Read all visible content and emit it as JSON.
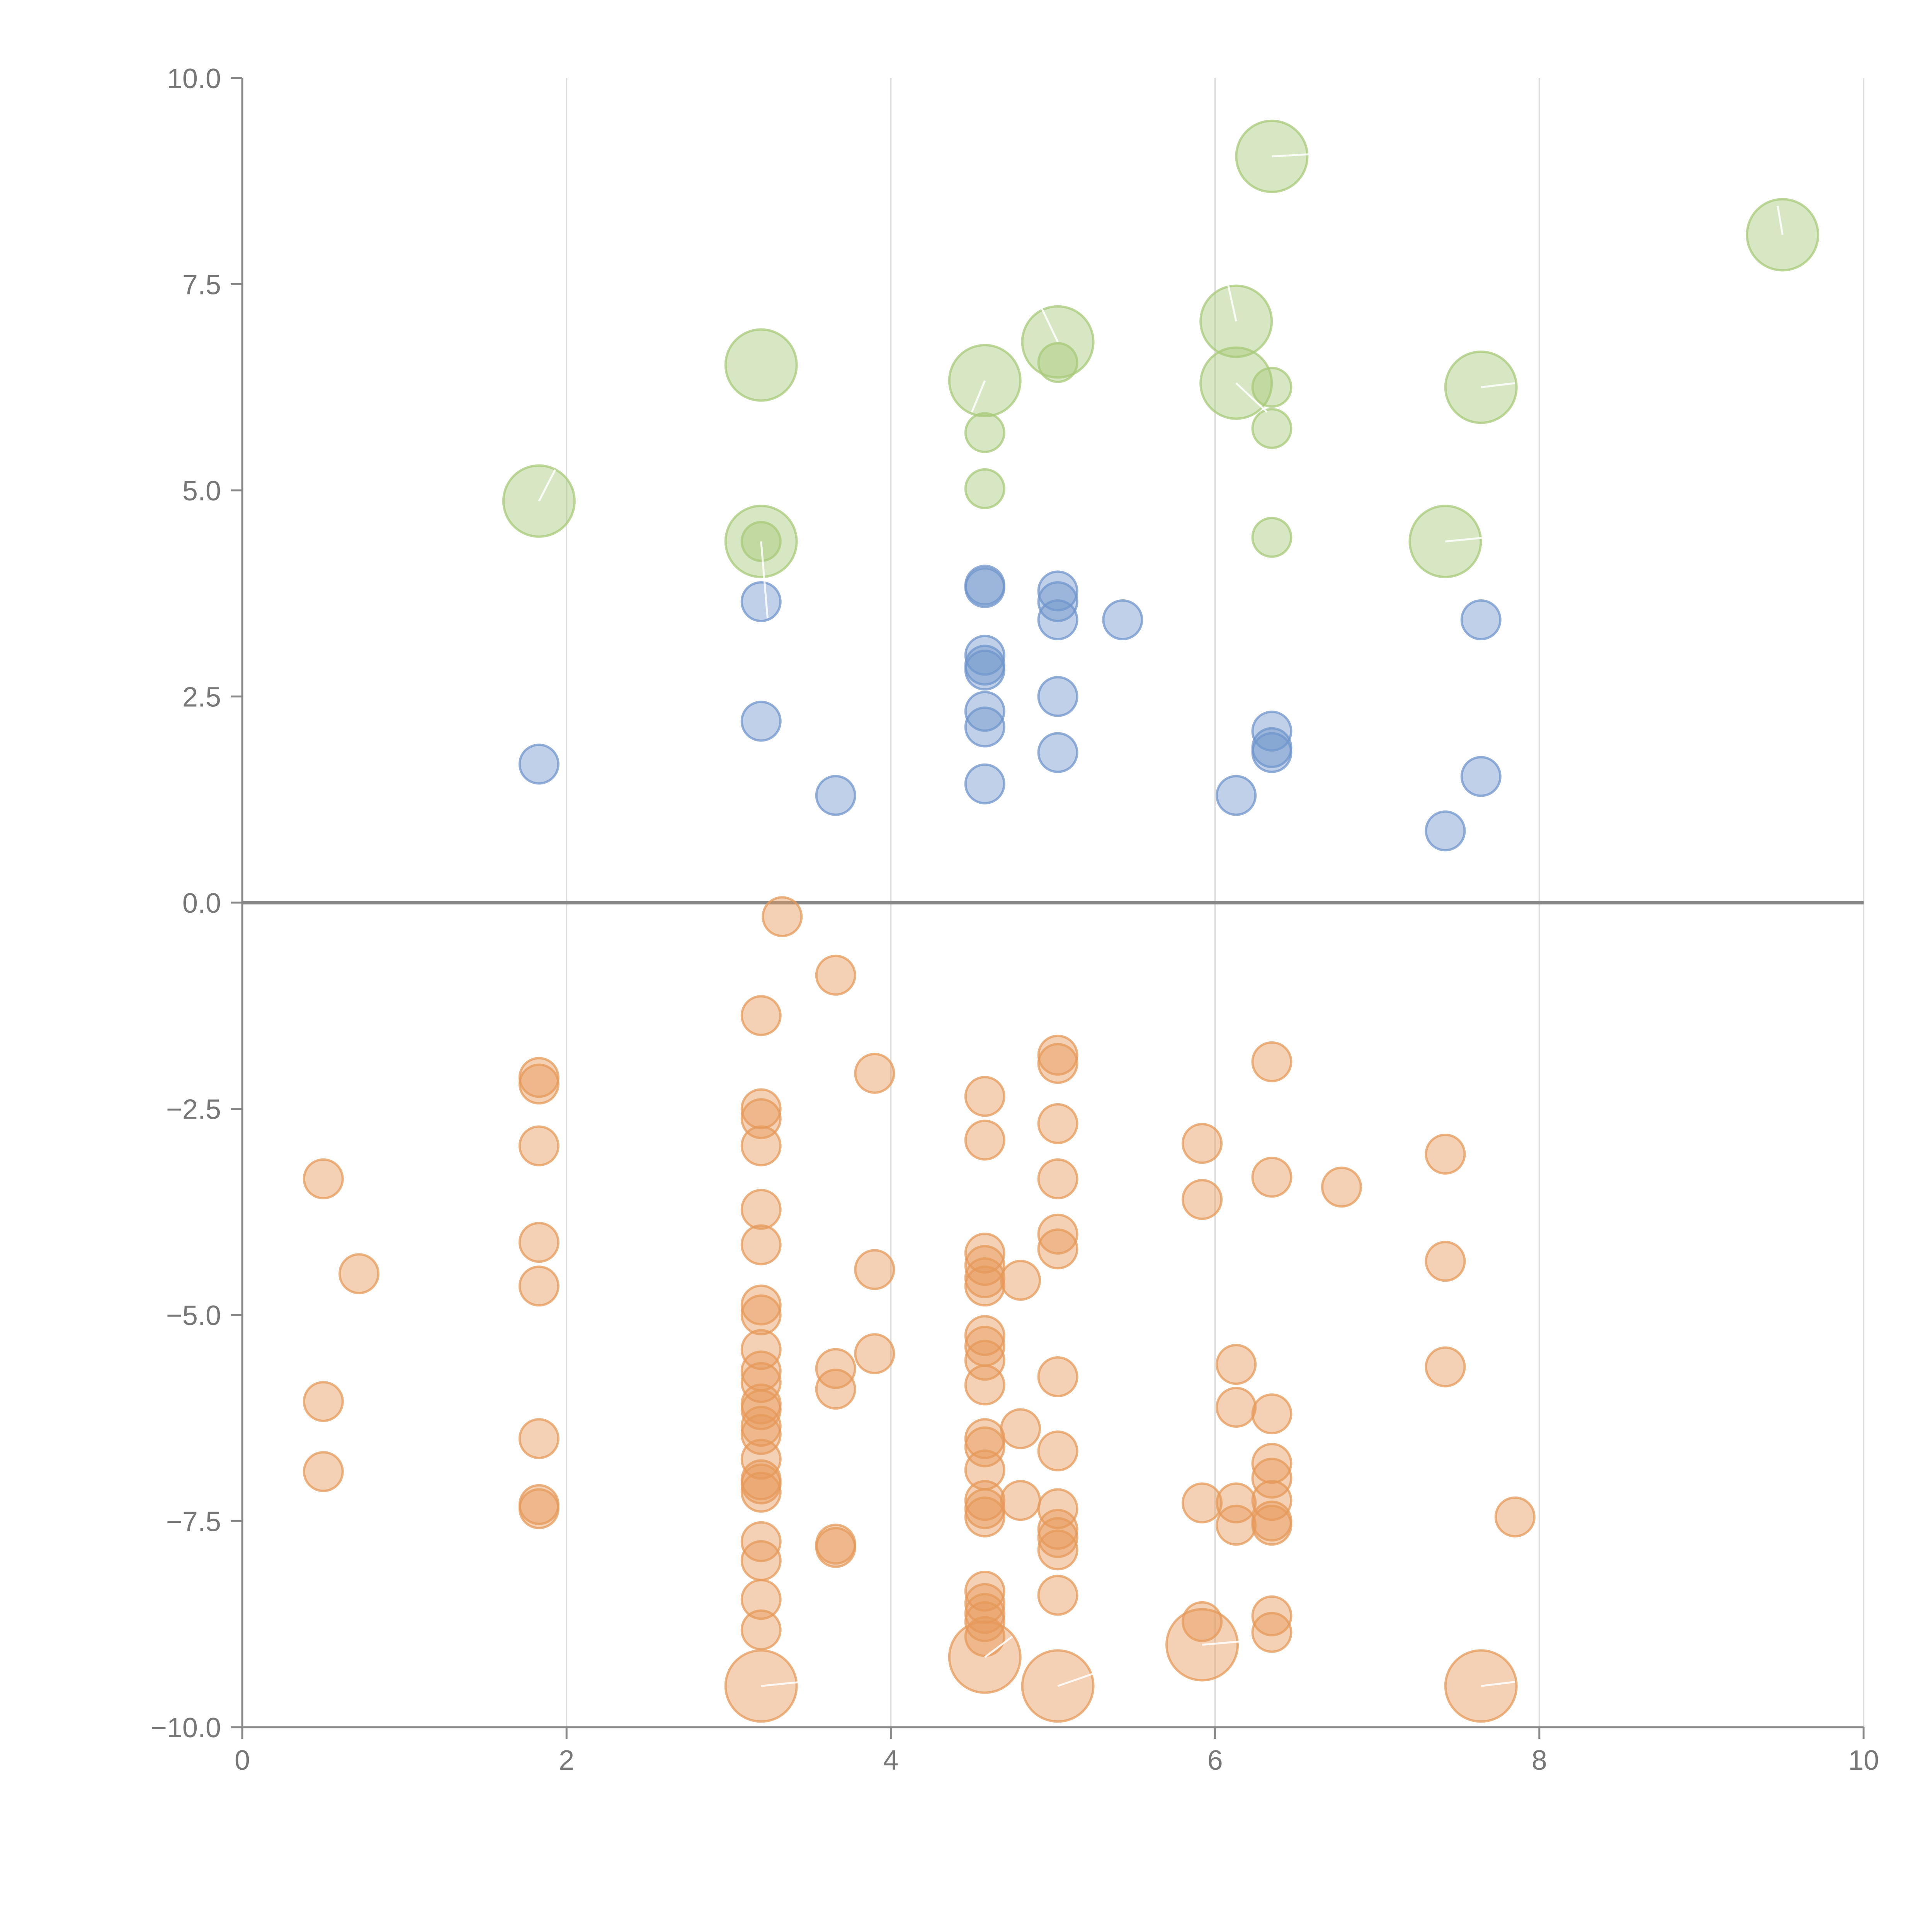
{
  "chart_data": {
    "type": "scatter",
    "title": "",
    "xlabel": "",
    "ylabel": "",
    "xlim": [
      0,
      10
    ],
    "ylim": [
      -10,
      10
    ],
    "grid": "vertical",
    "zero_line": true,
    "x_ticks": [
      0,
      2,
      4,
      6,
      8,
      10
    ],
    "x_tick_labels": [
      "0",
      "2",
      "4",
      "6",
      "8",
      "10"
    ],
    "y_ticks": [
      10,
      7.5,
      5,
      2.5,
      0,
      -2.5,
      -5,
      -7.5,
      -10
    ],
    "y_tick_labels": [
      "10.0",
      "7.5",
      "5.0",
      "2.5",
      "0.0",
      "−2.5",
      "−5.0",
      "−7.5",
      "−10.0"
    ],
    "colors": {
      "green": "#a8c97a",
      "blue": "#7096cc",
      "orange": "#e6995a",
      "axis": "#888888",
      "grid": "#dddddd"
    },
    "series": [
      {
        "name": "green",
        "color": "#a8c97a",
        "points": [
          {
            "x": 1.83,
            "y": 4.87,
            "size": "large"
          },
          {
            "x": 3.2,
            "y": 6.52,
            "size": "large"
          },
          {
            "x": 3.2,
            "y": 4.38,
            "size": "large"
          },
          {
            "x": 3.2,
            "y": 4.38,
            "size": "small"
          },
          {
            "x": 4.58,
            "y": 6.33,
            "size": "large"
          },
          {
            "x": 4.58,
            "y": 5.7,
            "size": "small"
          },
          {
            "x": 4.58,
            "y": 5.02,
            "size": "small"
          },
          {
            "x": 5.03,
            "y": 6.8,
            "size": "large"
          },
          {
            "x": 5.03,
            "y": 6.55,
            "size": "small"
          },
          {
            "x": 6.13,
            "y": 7.05,
            "size": "large"
          },
          {
            "x": 6.13,
            "y": 6.3,
            "size": "large"
          },
          {
            "x": 6.35,
            "y": 9.05,
            "size": "large"
          },
          {
            "x": 6.35,
            "y": 6.25,
            "size": "small"
          },
          {
            "x": 6.35,
            "y": 5.75,
            "size": "small"
          },
          {
            "x": 6.35,
            "y": 4.43,
            "size": "small"
          },
          {
            "x": 7.42,
            "y": 4.38,
            "size": "large"
          },
          {
            "x": 7.64,
            "y": 6.25,
            "size": "large"
          },
          {
            "x": 9.5,
            "y": 8.1,
            "size": "large"
          }
        ]
      },
      {
        "name": "blue",
        "color": "#7096cc",
        "points": [
          {
            "x": 1.83,
            "y": 1.68,
            "size": "small"
          },
          {
            "x": 3.2,
            "y": 3.65,
            "size": "small"
          },
          {
            "x": 3.2,
            "y": 2.2,
            "size": "small"
          },
          {
            "x": 3.66,
            "y": 1.3,
            "size": "small"
          },
          {
            "x": 4.58,
            "y": 3.85,
            "size": "small"
          },
          {
            "x": 4.58,
            "y": 3.82,
            "size": "small"
          },
          {
            "x": 4.58,
            "y": 3.0,
            "size": "small"
          },
          {
            "x": 4.58,
            "y": 2.88,
            "size": "small"
          },
          {
            "x": 4.58,
            "y": 2.82,
            "size": "small"
          },
          {
            "x": 4.58,
            "y": 2.32,
            "size": "small"
          },
          {
            "x": 4.58,
            "y": 2.13,
            "size": "small"
          },
          {
            "x": 4.58,
            "y": 1.44,
            "size": "small"
          },
          {
            "x": 5.03,
            "y": 3.78,
            "size": "small"
          },
          {
            "x": 5.03,
            "y": 3.65,
            "size": "small"
          },
          {
            "x": 5.03,
            "y": 3.43,
            "size": "small"
          },
          {
            "x": 5.03,
            "y": 2.5,
            "size": "small"
          },
          {
            "x": 5.03,
            "y": 1.82,
            "size": "small"
          },
          {
            "x": 5.43,
            "y": 3.43,
            "size": "small"
          },
          {
            "x": 6.13,
            "y": 1.3,
            "size": "small"
          },
          {
            "x": 6.35,
            "y": 2.08,
            "size": "small"
          },
          {
            "x": 6.35,
            "y": 1.88,
            "size": "small"
          },
          {
            "x": 6.35,
            "y": 1.82,
            "size": "small"
          },
          {
            "x": 7.42,
            "y": 0.87,
            "size": "small"
          },
          {
            "x": 7.64,
            "y": 3.43,
            "size": "small"
          },
          {
            "x": 7.64,
            "y": 1.53,
            "size": "small"
          }
        ]
      },
      {
        "name": "orange",
        "color": "#e6995a",
        "points": [
          {
            "x": 0.5,
            "y": -3.35,
            "size": "small"
          },
          {
            "x": 0.5,
            "y": -6.05,
            "size": "small"
          },
          {
            "x": 0.5,
            "y": -6.9,
            "size": "small"
          },
          {
            "x": 0.72,
            "y": -4.5,
            "size": "small"
          },
          {
            "x": 1.83,
            "y": -2.12,
            "size": "small"
          },
          {
            "x": 1.83,
            "y": -2.2,
            "size": "small"
          },
          {
            "x": 1.83,
            "y": -2.95,
            "size": "small"
          },
          {
            "x": 1.83,
            "y": -4.12,
            "size": "small"
          },
          {
            "x": 1.83,
            "y": -4.65,
            "size": "small"
          },
          {
            "x": 1.83,
            "y": -6.5,
            "size": "small"
          },
          {
            "x": 1.83,
            "y": -7.3,
            "size": "small"
          },
          {
            "x": 1.83,
            "y": -7.35,
            "size": "small"
          },
          {
            "x": 3.33,
            "y": -0.17,
            "size": "small"
          },
          {
            "x": 3.2,
            "y": -1.37,
            "size": "small"
          },
          {
            "x": 3.2,
            "y": -2.5,
            "size": "small"
          },
          {
            "x": 3.2,
            "y": -2.62,
            "size": "small"
          },
          {
            "x": 3.2,
            "y": -2.95,
            "size": "small"
          },
          {
            "x": 3.2,
            "y": -3.72,
            "size": "small"
          },
          {
            "x": 3.2,
            "y": -4.15,
            "size": "small"
          },
          {
            "x": 3.2,
            "y": -4.88,
            "size": "small"
          },
          {
            "x": 3.2,
            "y": -5.0,
            "size": "small"
          },
          {
            "x": 3.2,
            "y": -5.42,
            "size": "small"
          },
          {
            "x": 3.2,
            "y": -5.68,
            "size": "small"
          },
          {
            "x": 3.2,
            "y": -5.82,
            "size": "small"
          },
          {
            "x": 3.2,
            "y": -6.08,
            "size": "small"
          },
          {
            "x": 3.2,
            "y": -6.15,
            "size": "small"
          },
          {
            "x": 3.2,
            "y": -6.35,
            "size": "small"
          },
          {
            "x": 3.2,
            "y": -6.45,
            "size": "small"
          },
          {
            "x": 3.2,
            "y": -6.75,
            "size": "small"
          },
          {
            "x": 3.2,
            "y": -7.0,
            "size": "small"
          },
          {
            "x": 3.2,
            "y": -7.05,
            "size": "small"
          },
          {
            "x": 3.2,
            "y": -7.15,
            "size": "small"
          },
          {
            "x": 3.2,
            "y": -7.75,
            "size": "small"
          },
          {
            "x": 3.2,
            "y": -7.98,
            "size": "small"
          },
          {
            "x": 3.2,
            "y": -8.45,
            "size": "small"
          },
          {
            "x": 3.2,
            "y": -8.82,
            "size": "small"
          },
          {
            "x": 3.2,
            "y": -9.5,
            "size": "large"
          },
          {
            "x": 3.66,
            "y": -0.88,
            "size": "small"
          },
          {
            "x": 3.66,
            "y": -5.65,
            "size": "small"
          },
          {
            "x": 3.66,
            "y": -5.9,
            "size": "small"
          },
          {
            "x": 3.66,
            "y": -7.78,
            "size": "small"
          },
          {
            "x": 3.66,
            "y": -7.82,
            "size": "small"
          },
          {
            "x": 3.9,
            "y": -2.07,
            "size": "small"
          },
          {
            "x": 3.9,
            "y": -4.45,
            "size": "small"
          },
          {
            "x": 3.9,
            "y": -5.47,
            "size": "small"
          },
          {
            "x": 4.58,
            "y": -2.35,
            "size": "small"
          },
          {
            "x": 4.58,
            "y": -2.88,
            "size": "small"
          },
          {
            "x": 4.58,
            "y": -4.25,
            "size": "small"
          },
          {
            "x": 4.58,
            "y": -4.4,
            "size": "small"
          },
          {
            "x": 4.58,
            "y": -4.55,
            "size": "small"
          },
          {
            "x": 4.58,
            "y": -4.65,
            "size": "small"
          },
          {
            "x": 4.58,
            "y": -5.25,
            "size": "small"
          },
          {
            "x": 4.58,
            "y": -5.38,
            "size": "small"
          },
          {
            "x": 4.58,
            "y": -5.55,
            "size": "small"
          },
          {
            "x": 4.58,
            "y": -5.85,
            "size": "small"
          },
          {
            "x": 4.58,
            "y": -6.5,
            "size": "small"
          },
          {
            "x": 4.58,
            "y": -6.6,
            "size": "small"
          },
          {
            "x": 4.58,
            "y": -6.88,
            "size": "small"
          },
          {
            "x": 4.58,
            "y": -7.25,
            "size": "small"
          },
          {
            "x": 4.58,
            "y": -7.35,
            "size": "small"
          },
          {
            "x": 4.58,
            "y": -7.45,
            "size": "small"
          },
          {
            "x": 4.58,
            "y": -8.35,
            "size": "small"
          },
          {
            "x": 4.58,
            "y": -8.5,
            "size": "small"
          },
          {
            "x": 4.58,
            "y": -8.62,
            "size": "small"
          },
          {
            "x": 4.58,
            "y": -8.72,
            "size": "small"
          },
          {
            "x": 4.58,
            "y": -8.9,
            "size": "small"
          },
          {
            "x": 4.58,
            "y": -9.15,
            "size": "large"
          },
          {
            "x": 4.8,
            "y": -4.58,
            "size": "small"
          },
          {
            "x": 4.8,
            "y": -6.38,
            "size": "small"
          },
          {
            "x": 4.8,
            "y": -7.25,
            "size": "small"
          },
          {
            "x": 5.03,
            "y": -1.85,
            "size": "small"
          },
          {
            "x": 5.03,
            "y": -1.95,
            "size": "small"
          },
          {
            "x": 5.03,
            "y": -2.68,
            "size": "small"
          },
          {
            "x": 5.03,
            "y": -3.35,
            "size": "small"
          },
          {
            "x": 5.03,
            "y": -4.02,
            "size": "small"
          },
          {
            "x": 5.03,
            "y": -4.2,
            "size": "small"
          },
          {
            "x": 5.03,
            "y": -5.75,
            "size": "small"
          },
          {
            "x": 5.03,
            "y": -6.65,
            "size": "small"
          },
          {
            "x": 5.03,
            "y": -7.35,
            "size": "small"
          },
          {
            "x": 5.03,
            "y": -7.6,
            "size": "small"
          },
          {
            "x": 5.03,
            "y": -7.7,
            "size": "small"
          },
          {
            "x": 5.03,
            "y": -7.85,
            "size": "small"
          },
          {
            "x": 5.03,
            "y": -8.4,
            "size": "small"
          },
          {
            "x": 5.03,
            "y": -9.5,
            "size": "large"
          },
          {
            "x": 5.92,
            "y": -2.92,
            "size": "small"
          },
          {
            "x": 5.92,
            "y": -3.6,
            "size": "small"
          },
          {
            "x": 5.92,
            "y": -7.28,
            "size": "small"
          },
          {
            "x": 5.92,
            "y": -8.72,
            "size": "small"
          },
          {
            "x": 5.92,
            "y": -9.0,
            "size": "large"
          },
          {
            "x": 6.13,
            "y": -5.6,
            "size": "small"
          },
          {
            "x": 6.13,
            "y": -6.12,
            "size": "small"
          },
          {
            "x": 6.13,
            "y": -7.28,
            "size": "small"
          },
          {
            "x": 6.13,
            "y": -7.55,
            "size": "small"
          },
          {
            "x": 6.35,
            "y": -1.93,
            "size": "small"
          },
          {
            "x": 6.35,
            "y": -3.33,
            "size": "small"
          },
          {
            "x": 6.35,
            "y": -6.2,
            "size": "small"
          },
          {
            "x": 6.35,
            "y": -6.8,
            "size": "small"
          },
          {
            "x": 6.35,
            "y": -6.98,
            "size": "small"
          },
          {
            "x": 6.35,
            "y": -7.25,
            "size": "small"
          },
          {
            "x": 6.35,
            "y": -7.5,
            "size": "small"
          },
          {
            "x": 6.35,
            "y": -7.55,
            "size": "small"
          },
          {
            "x": 6.35,
            "y": -8.65,
            "size": "small"
          },
          {
            "x": 6.35,
            "y": -8.85,
            "size": "small"
          },
          {
            "x": 6.78,
            "y": -3.45,
            "size": "small"
          },
          {
            "x": 7.42,
            "y": -3.05,
            "size": "small"
          },
          {
            "x": 7.42,
            "y": -4.35,
            "size": "small"
          },
          {
            "x": 7.42,
            "y": -5.63,
            "size": "small"
          },
          {
            "x": 7.64,
            "y": -9.5,
            "size": "large"
          },
          {
            "x": 7.85,
            "y": -7.45,
            "size": "small"
          }
        ]
      }
    ],
    "label_leaders": [
      {
        "x1": 1.83,
        "y1": 4.87,
        "x2": 1.93,
        "y2": 5.25
      },
      {
        "x1": 3.2,
        "y1": 4.38,
        "x2": 3.24,
        "y2": 3.45
      },
      {
        "x1": 4.58,
        "y1": 6.33,
        "x2": 4.5,
        "y2": 5.95
      },
      {
        "x1": 5.03,
        "y1": 6.8,
        "x2": 4.92,
        "y2": 7.25
      },
      {
        "x1": 6.13,
        "y1": 7.05,
        "x2": 6.08,
        "y2": 7.5
      },
      {
        "x1": 6.13,
        "y1": 6.3,
        "x2": 6.32,
        "y2": 5.95
      },
      {
        "x1": 6.35,
        "y1": 9.05,
        "x2": 6.62,
        "y2": 9.08
      },
      {
        "x1": 7.42,
        "y1": 4.38,
        "x2": 7.68,
        "y2": 4.43
      },
      {
        "x1": 7.64,
        "y1": 6.25,
        "x2": 7.85,
        "y2": 6.3
      },
      {
        "x1": 9.5,
        "y1": 8.1,
        "x2": 9.47,
        "y2": 8.45
      },
      {
        "x1": 3.2,
        "y1": -9.5,
        "x2": 3.45,
        "y2": -9.45
      },
      {
        "x1": 4.58,
        "y1": -9.15,
        "x2": 4.75,
        "y2": -8.9
      },
      {
        "x1": 5.03,
        "y1": -9.5,
        "x2": 5.25,
        "y2": -9.35
      },
      {
        "x1": 5.1,
        "y1": -8.95,
        "x2": 5.13,
        "y2": -8.75
      },
      {
        "x1": 5.92,
        "y1": -9.0,
        "x2": 6.22,
        "y2": -8.95
      },
      {
        "x1": 7.64,
        "y1": -9.5,
        "x2": 7.85,
        "y2": -9.45
      }
    ]
  }
}
